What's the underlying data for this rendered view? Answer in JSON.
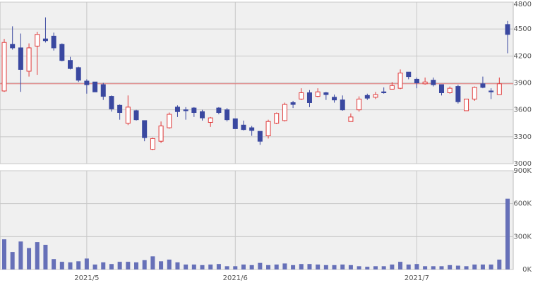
{
  "chart_data": {
    "type": "candlestick",
    "categories": [
      null,
      null,
      null,
      null,
      null,
      null,
      null,
      null,
      null,
      null,
      "2021/5",
      null,
      null,
      null,
      null,
      null,
      null,
      null,
      null,
      null,
      null,
      null,
      null,
      null,
      null,
      null,
      null,
      null,
      "2021/6",
      null,
      null,
      null,
      null,
      null,
      null,
      null,
      null,
      null,
      null,
      null,
      null,
      null,
      null,
      null,
      null,
      null,
      null,
      null,
      null,
      null,
      "2021/7",
      null,
      null,
      null,
      null,
      null,
      null,
      null,
      null,
      null,
      null,
      null
    ],
    "open": [
      3810,
      4330,
      4290,
      4030,
      4310,
      4390,
      4420,
      4330,
      4150,
      4070,
      3920,
      3910,
      3880,
      3750,
      3650,
      3450,
      3590,
      3480,
      3160,
      3250,
      3400,
      3630,
      3600,
      3620,
      3580,
      3460,
      3620,
      3600,
      3500,
      3430,
      3400,
      3360,
      3310,
      3450,
      3480,
      3680,
      3720,
      3790,
      3750,
      3790,
      3740,
      3710,
      3470,
      3600,
      3760,
      3740,
      3800,
      3830,
      3840,
      4020,
      3940,
      3890,
      3930,
      3880,
      3790,
      3860,
      3590,
      3720,
      3890,
      3810,
      3770,
      4550
    ],
    "high": [
      4390,
      4530,
      4450,
      4340,
      4470,
      4630,
      4460,
      4340,
      4190,
      4080,
      3940,
      3910,
      3900,
      3760,
      3660,
      3760,
      3600,
      3480,
      3290,
      3470,
      3570,
      3650,
      3630,
      3630,
      3600,
      3520,
      3630,
      3620,
      3500,
      3480,
      3420,
      3360,
      3490,
      3570,
      3680,
      3700,
      3840,
      3820,
      3840,
      3800,
      3770,
      3760,
      3560,
      3750,
      3780,
      3800,
      3850,
      3910,
      4050,
      4020,
      3960,
      3960,
      3960,
      3880,
      3860,
      3880,
      3720,
      3860,
      3970,
      3840,
      3960,
      4590
    ],
    "low": [
      3800,
      4270,
      3800,
      3970,
      3990,
      4350,
      4260,
      4140,
      4050,
      3910,
      3780,
      3800,
      3710,
      3580,
      3490,
      3430,
      3480,
      3250,
      3150,
      3230,
      3390,
      3520,
      3490,
      3520,
      3480,
      3410,
      3550,
      3470,
      3390,
      3370,
      3310,
      3210,
      3280,
      3440,
      3470,
      3620,
      3710,
      3630,
      3740,
      3710,
      3680,
      3590,
      3470,
      3580,
      3710,
      3720,
      3780,
      3830,
      3830,
      3940,
      3840,
      3880,
      3860,
      3760,
      3780,
      3670,
      3590,
      3700,
      3840,
      3720,
      3770,
      4230
    ],
    "close": [
      4350,
      4290,
      4050,
      4290,
      4440,
      4370,
      4290,
      4150,
      4060,
      3930,
      3880,
      3800,
      3750,
      3610,
      3570,
      3630,
      3490,
      3290,
      3280,
      3420,
      3550,
      3580,
      3590,
      3570,
      3510,
      3510,
      3570,
      3490,
      3390,
      3380,
      3370,
      3250,
      3470,
      3560,
      3660,
      3660,
      3790,
      3680,
      3800,
      3770,
      3710,
      3600,
      3520,
      3720,
      3730,
      3770,
      3790,
      3870,
      4010,
      3970,
      3900,
      3910,
      3880,
      3790,
      3840,
      3690,
      3720,
      3850,
      3850,
      3800,
      3890,
      4440
    ],
    "up_color": "#e03a3a",
    "down_color": "#3a48a0",
    "ylim": [
      3000,
      4800
    ],
    "yticks": [
      3000,
      3300,
      3600,
      3900,
      4200,
      4500,
      4800
    ],
    "reference_line": {
      "value": 3890,
      "color": "#e07070"
    },
    "grid": true,
    "volume": {
      "color": "#6670b8",
      "values": [
        275000,
        160000,
        255000,
        195000,
        250000,
        225000,
        95000,
        70000,
        65000,
        75000,
        100000,
        45000,
        65000,
        50000,
        70000,
        70000,
        65000,
        85000,
        120000,
        75000,
        90000,
        65000,
        45000,
        45000,
        40000,
        45000,
        50000,
        30000,
        30000,
        45000,
        40000,
        60000,
        40000,
        45000,
        55000,
        40000,
        50000,
        50000,
        45000,
        40000,
        40000,
        45000,
        40000,
        30000,
        25000,
        30000,
        30000,
        45000,
        70000,
        45000,
        50000,
        30000,
        30000,
        30000,
        40000,
        35000,
        30000,
        45000,
        45000,
        45000,
        90000,
        645000
      ],
      "ylim": [
        0,
        900000
      ],
      "yticks": [
        {
          "value": 0,
          "label": "0K"
        },
        {
          "value": 300000,
          "label": "300K"
        },
        {
          "value": 600000,
          "label": "600K"
        },
        {
          "value": 900000,
          "label": "900K"
        }
      ]
    }
  }
}
